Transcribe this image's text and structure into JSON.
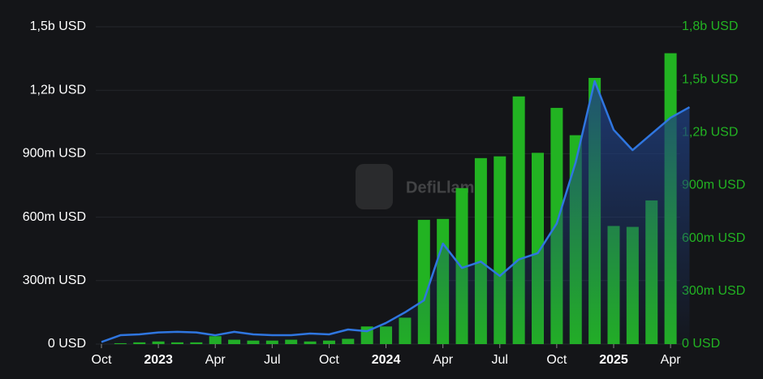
{
  "chart_data": {
    "type": "bar-line",
    "watermark": "DefiLlama",
    "x": [
      "2022-10",
      "2022-11",
      "2022-12",
      "2023-01",
      "2023-02",
      "2023-03",
      "2023-04",
      "2023-05",
      "2023-06",
      "2023-07",
      "2023-08",
      "2023-09",
      "2023-10",
      "2023-11",
      "2023-12",
      "2024-01",
      "2024-02",
      "2024-03",
      "2024-04",
      "2024-05",
      "2024-06",
      "2024-07",
      "2024-08",
      "2024-09",
      "2024-10",
      "2024-11",
      "2024-12",
      "2025-01",
      "2025-02",
      "2025-03",
      "2025-04",
      "2025-05"
    ],
    "series": [
      {
        "kind": "bar",
        "axis": "y2",
        "color": "#22b322",
        "values": [
          null,
          5000000,
          10000000,
          15000000,
          10000000,
          10000000,
          45000000,
          25000000,
          20000000,
          20000000,
          25000000,
          15000000,
          20000000,
          30000000,
          100000000,
          100000000,
          150000000,
          705000000,
          710000000,
          885000000,
          1055000000,
          1065000000,
          1405000000,
          1085000000,
          1340000000,
          1185000000,
          1510000000,
          670000000,
          665000000,
          815000000,
          1650000000,
          null
        ]
      },
      {
        "kind": "line",
        "axis": "y",
        "color": "#2f76e0",
        "values": [
          10000000,
          42000000,
          46000000,
          55000000,
          58000000,
          55000000,
          42000000,
          58000000,
          46000000,
          42000000,
          42000000,
          50000000,
          46000000,
          69000000,
          61000000,
          100000000,
          150000000,
          207000000,
          475000000,
          360000000,
          390000000,
          322000000,
          400000000,
          430000000,
          570000000,
          860000000,
          1243000000,
          1013000000,
          917000000,
          994000000,
          1070000000,
          1120000000
        ]
      }
    ],
    "ylim": [
      0,
      1500000000
    ],
    "yticks": [
      {
        "value": 0,
        "label": "0 USD"
      },
      {
        "value": 300000000,
        "label": "300m USD"
      },
      {
        "value": 600000000,
        "label": "600m USD"
      },
      {
        "value": 900000000,
        "label": "900m USD"
      },
      {
        "value": 1200000000,
        "label": "1,2b USD"
      },
      {
        "value": 1500000000,
        "label": "1,5b USD"
      }
    ],
    "y2lim": [
      0,
      1800000000
    ],
    "y2ticks": [
      {
        "value": 0,
        "label": "0 USD"
      },
      {
        "value": 300000000,
        "label": "300m USD"
      },
      {
        "value": 600000000,
        "label": "600m USD"
      },
      {
        "value": 900000000,
        "label": "900m USD"
      },
      {
        "value": 1200000000,
        "label": "1,2b USD"
      },
      {
        "value": 1500000000,
        "label": "1,5b USD"
      },
      {
        "value": 1800000000,
        "label": "1,8b USD"
      }
    ],
    "xticks": [
      {
        "value": "2022-10",
        "label": "Oct"
      },
      {
        "value": "2023-01",
        "label": "2023"
      },
      {
        "value": "2023-04",
        "label": "Apr"
      },
      {
        "value": "2023-07",
        "label": "Jul"
      },
      {
        "value": "2023-10",
        "label": "Oct"
      },
      {
        "value": "2024-01",
        "label": "2024"
      },
      {
        "value": "2024-04",
        "label": "Apr"
      },
      {
        "value": "2024-07",
        "label": "Jul"
      },
      {
        "value": "2024-10",
        "label": "Oct"
      },
      {
        "value": "2025-01",
        "label": "2025"
      },
      {
        "value": "2025-04",
        "label": "Apr"
      }
    ],
    "grid": true,
    "y2_label_color": "#22b322"
  }
}
